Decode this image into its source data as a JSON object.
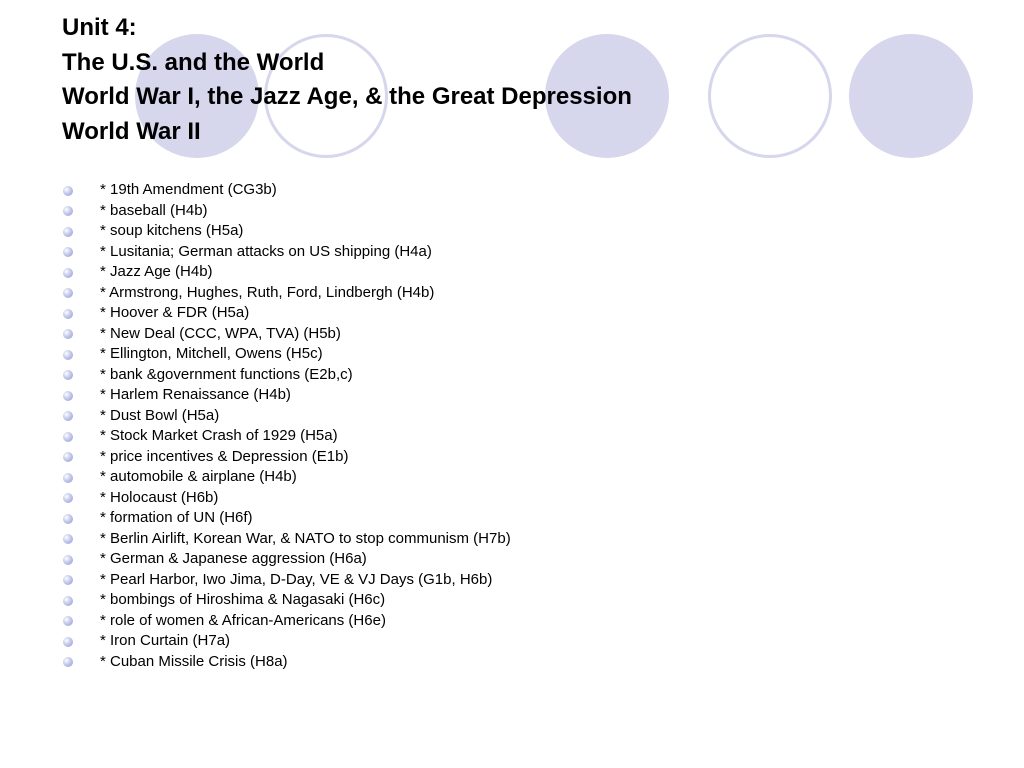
{
  "slide": {
    "title_lines": [
      "Unit 4:",
      "The U.S. and the World",
      "World War I, the Jazz Age, & the Great Depression",
      "World War II"
    ],
    "bullets": [
      "* 19th Amendment (CG3b)",
      "* baseball (H4b)",
      "* soup kitchens (H5a)",
      "* Lusitania; German attacks on US shipping (H4a)",
      "* Jazz Age (H4b)",
      "* Armstrong, Hughes, Ruth, Ford, Lindbergh (H4b)",
      "* Hoover & FDR (H5a)",
      "* New Deal (CCC, WPA, TVA) (H5b)",
      "* Ellington, Mitchell, Owens (H5c)",
      "* bank &government functions (E2b,c)",
      "* Harlem Renaissance (H4b)",
      "* Dust Bowl (H5a)",
      "* Stock Market Crash of 1929 (H5a)",
      "* price incentives & Depression (E1b)",
      "* automobile & airplane (H4b)",
      "* Holocaust (H6b)",
      "* formation of UN (H6f)",
      "* Berlin Airlift, Korean War, & NATO to stop communism (H7b)",
      "* German & Japanese aggression (H6a)",
      "* Pearl Harbor, Iwo Jima, D-Day, VE & VJ Days (G1b, H6b)",
      "* bombings of Hiroshima & Nagasaki (H6c)",
      "* role of women & African-Americans (H6e)",
      "* Iron Curtain (H7a)",
      "* Cuban Missile Crisis (H8a)"
    ]
  },
  "theme": {
    "circle_color": "#d6d6ec",
    "bullet_color": "#8c95d6",
    "text_color": "#000000",
    "background": "#ffffff"
  }
}
